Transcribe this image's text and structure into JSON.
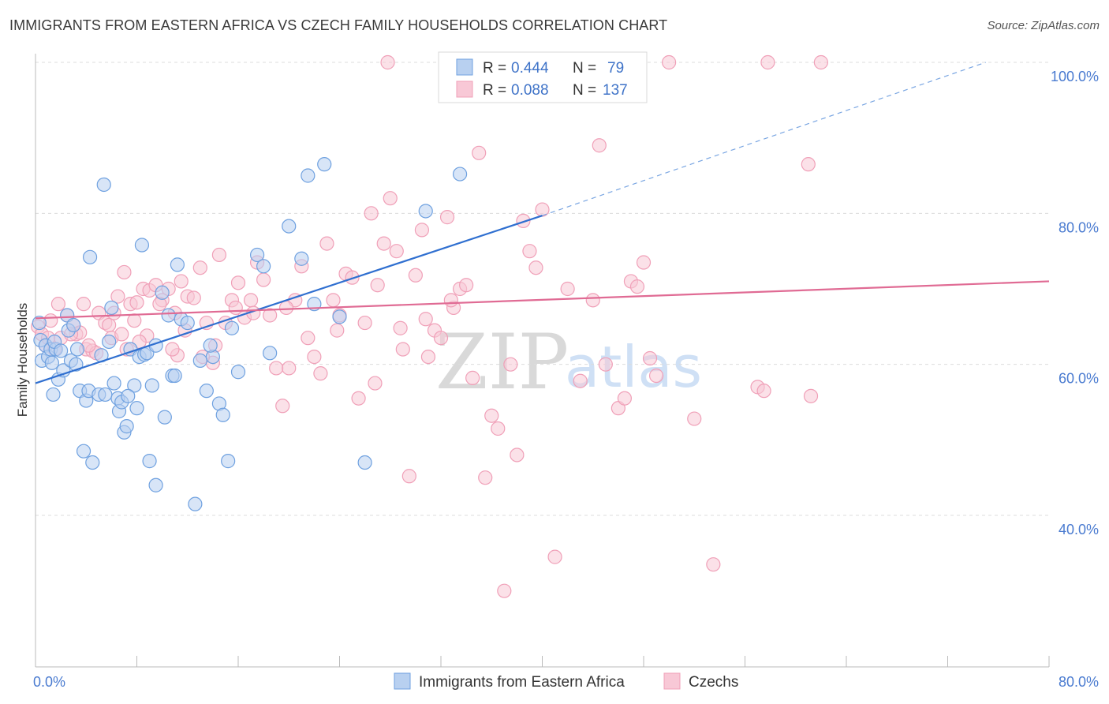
{
  "title": "IMMIGRANTS FROM EASTERN AFRICA VS CZECH FAMILY HOUSEHOLDS CORRELATION CHART",
  "source": "Source: ZipAtlas.com",
  "watermark": {
    "zip": "ZIP",
    "atlas": "atlas"
  },
  "legend_top": {
    "r_label": "R =",
    "n_label": "N =",
    "rows": [
      {
        "r": "0.444",
        "n": "79"
      },
      {
        "r": "0.088",
        "n": "137"
      }
    ]
  },
  "chart_data": {
    "type": "scatter",
    "ylabel": "Family Households",
    "xlabel": "",
    "xlim": [
      0,
      80
    ],
    "ylim": [
      21,
      100
    ],
    "x_tick_labels": [
      "0.0%",
      "80.0%"
    ],
    "y_ticks": [
      40,
      60,
      80,
      100
    ],
    "y_tick_labels": [
      "40.0%",
      "60.0%",
      "80.0%",
      "100.0%"
    ],
    "grid": true,
    "legend_position": "top-center",
    "series": [
      {
        "name": "Immigrants from Eastern Africa",
        "color": "#6fa1e0",
        "fill": "#b8d0f0",
        "trend": {
          "x0": 0,
          "y0": 57.5,
          "x1": 40,
          "y1": 79.7,
          "dash_to_x": 75,
          "dash_to_y": 100
        },
        "points": [
          [
            0.3,
            65.5
          ],
          [
            0.4,
            63.2
          ],
          [
            0.5,
            60.5
          ],
          [
            0.8,
            62.5
          ],
          [
            1.0,
            61.0
          ],
          [
            1.2,
            62.0
          ],
          [
            1.3,
            60.2
          ],
          [
            1.4,
            56.0
          ],
          [
            1.6,
            62.0
          ],
          [
            1.8,
            58.0
          ],
          [
            2.2,
            59.2
          ],
          [
            2.5,
            66.5
          ],
          [
            2.6,
            64.5
          ],
          [
            2.8,
            60.5
          ],
          [
            3.0,
            65.2
          ],
          [
            3.2,
            60.0
          ],
          [
            3.5,
            56.5
          ],
          [
            3.8,
            48.5
          ],
          [
            4.0,
            55.2
          ],
          [
            4.2,
            56.5
          ],
          [
            4.3,
            74.2
          ],
          [
            4.5,
            47.0
          ],
          [
            5.0,
            56.0
          ],
          [
            5.2,
            61.2
          ],
          [
            5.4,
            83.8
          ],
          [
            5.8,
            63.0
          ],
          [
            6.0,
            67.5
          ],
          [
            6.2,
            57.5
          ],
          [
            6.5,
            55.5
          ],
          [
            6.6,
            53.8
          ],
          [
            6.8,
            55.0
          ],
          [
            7.0,
            51.0
          ],
          [
            7.2,
            51.8
          ],
          [
            7.5,
            62.0
          ],
          [
            7.8,
            57.2
          ],
          [
            8.0,
            54.2
          ],
          [
            8.2,
            61.0
          ],
          [
            8.4,
            75.8
          ],
          [
            8.6,
            61.3
          ],
          [
            8.8,
            61.5
          ],
          [
            9.0,
            47.2
          ],
          [
            9.2,
            57.2
          ],
          [
            9.5,
            44.0
          ],
          [
            10.0,
            69.5
          ],
          [
            10.2,
            53.0
          ],
          [
            10.5,
            66.5
          ],
          [
            10.8,
            58.5
          ],
          [
            11.0,
            58.5
          ],
          [
            11.2,
            73.2
          ],
          [
            11.5,
            66.0
          ],
          [
            12.0,
            65.5
          ],
          [
            12.6,
            41.5
          ],
          [
            13.0,
            60.5
          ],
          [
            13.5,
            56.5
          ],
          [
            14.0,
            61.0
          ],
          [
            14.5,
            54.8
          ],
          [
            14.8,
            53.3
          ],
          [
            15.2,
            47.2
          ],
          [
            15.5,
            64.8
          ],
          [
            16.0,
            59.0
          ],
          [
            17.5,
            74.5
          ],
          [
            18.0,
            73.0
          ],
          [
            20.0,
            78.3
          ],
          [
            21.0,
            74.0
          ],
          [
            21.5,
            85.0
          ],
          [
            22.8,
            86.5
          ],
          [
            30.8,
            80.3
          ],
          [
            33.5,
            85.2
          ],
          [
            24.0,
            66.3
          ],
          [
            26.0,
            47.0
          ],
          [
            22.0,
            68.0
          ],
          [
            18.5,
            61.5
          ],
          [
            1.5,
            63.0
          ],
          [
            2.0,
            61.8
          ],
          [
            9.5,
            62.5
          ],
          [
            13.8,
            62.5
          ],
          [
            3.3,
            62.0
          ],
          [
            7.3,
            55.8
          ],
          [
            5.5,
            56.0
          ]
        ]
      },
      {
        "name": "Czechs",
        "color": "#f0a0b8",
        "fill": "#f8c8d6",
        "trend": {
          "x0": 0,
          "y0": 66.1,
          "x1": 80,
          "y1": 71.0
        },
        "points": [
          [
            0.2,
            65.0
          ],
          [
            0.5,
            64.0
          ],
          [
            0.8,
            62.5
          ],
          [
            1.0,
            63.5
          ],
          [
            1.2,
            65.8
          ],
          [
            1.5,
            62.0
          ],
          [
            2.0,
            63.5
          ],
          [
            2.5,
            66.5
          ],
          [
            3.0,
            65.2
          ],
          [
            3.2,
            64.0
          ],
          [
            3.5,
            64.2
          ],
          [
            4.0,
            62.0
          ],
          [
            4.5,
            61.8
          ],
          [
            5.0,
            66.8
          ],
          [
            5.5,
            65.5
          ],
          [
            5.8,
            65.2
          ],
          [
            6.0,
            63.5
          ],
          [
            6.2,
            66.8
          ],
          [
            6.5,
            69.0
          ],
          [
            7.0,
            72.2
          ],
          [
            7.2,
            62.0
          ],
          [
            7.5,
            68.0
          ],
          [
            7.8,
            65.8
          ],
          [
            8.0,
            68.2
          ],
          [
            8.5,
            70.0
          ],
          [
            8.8,
            63.8
          ],
          [
            9.0,
            69.8
          ],
          [
            9.5,
            70.5
          ],
          [
            10.0,
            68.5
          ],
          [
            10.5,
            70.0
          ],
          [
            11.0,
            66.8
          ],
          [
            11.2,
            61.2
          ],
          [
            11.5,
            71.0
          ],
          [
            12.0,
            69.0
          ],
          [
            12.5,
            68.8
          ],
          [
            13.0,
            72.8
          ],
          [
            13.5,
            65.5
          ],
          [
            14.0,
            60.2
          ],
          [
            14.5,
            74.5
          ],
          [
            15.0,
            65.5
          ],
          [
            15.5,
            68.5
          ],
          [
            16.0,
            70.8
          ],
          [
            16.5,
            66.2
          ],
          [
            17.0,
            68.5
          ],
          [
            17.5,
            73.5
          ],
          [
            18.0,
            71.2
          ],
          [
            18.5,
            66.5
          ],
          [
            19.0,
            59.5
          ],
          [
            19.5,
            54.5
          ],
          [
            20.0,
            59.5
          ],
          [
            20.5,
            68.5
          ],
          [
            21.0,
            73.0
          ],
          [
            21.5,
            63.5
          ],
          [
            22.0,
            61.0
          ],
          [
            22.5,
            58.8
          ],
          [
            23.0,
            76.0
          ],
          [
            23.5,
            68.5
          ],
          [
            24.0,
            66.5
          ],
          [
            24.5,
            72.0
          ],
          [
            25.0,
            71.5
          ],
          [
            25.5,
            55.5
          ],
          [
            26.0,
            65.5
          ],
          [
            26.5,
            80.0
          ],
          [
            27.0,
            70.5
          ],
          [
            27.5,
            76.0
          ],
          [
            28.0,
            82.0
          ],
          [
            28.5,
            75.0
          ],
          [
            29.0,
            62.0
          ],
          [
            29.5,
            45.2
          ],
          [
            30.0,
            71.8
          ],
          [
            30.5,
            77.8
          ],
          [
            31.0,
            61.0
          ],
          [
            31.5,
            64.5
          ],
          [
            32.0,
            63.5
          ],
          [
            32.5,
            79.5
          ],
          [
            33.0,
            67.5
          ],
          [
            33.5,
            70.0
          ],
          [
            34.0,
            70.5
          ],
          [
            34.5,
            58.2
          ],
          [
            35.0,
            88.0
          ],
          [
            35.5,
            45.0
          ],
          [
            36.0,
            53.2
          ],
          [
            36.5,
            51.5
          ],
          [
            37.0,
            30.0
          ],
          [
            37.5,
            60.0
          ],
          [
            38.0,
            48.0
          ],
          [
            38.5,
            79.0
          ],
          [
            39.0,
            75.0
          ],
          [
            39.5,
            72.8
          ],
          [
            40.0,
            80.5
          ],
          [
            41.0,
            34.5
          ],
          [
            42.0,
            70.0
          ],
          [
            43.0,
            57.8
          ],
          [
            44.0,
            68.5
          ],
          [
            44.5,
            89.0
          ],
          [
            45.0,
            60.0
          ],
          [
            46.0,
            54.2
          ],
          [
            46.5,
            55.5
          ],
          [
            47.0,
            71.0
          ],
          [
            47.5,
            70.3
          ],
          [
            48.0,
            73.5
          ],
          [
            48.5,
            60.8
          ],
          [
            49.0,
            58.5
          ],
          [
            52.0,
            52.8
          ],
          [
            53.5,
            33.5
          ],
          [
            57.0,
            57.0
          ],
          [
            57.5,
            56.5
          ],
          [
            61.0,
            86.5
          ],
          [
            61.2,
            55.8
          ],
          [
            6.8,
            64.0
          ],
          [
            2.8,
            64.0
          ],
          [
            11.8,
            64.5
          ],
          [
            14.2,
            62.5
          ],
          [
            17.2,
            66.8
          ],
          [
            19.8,
            67.5
          ],
          [
            23.8,
            64.5
          ],
          [
            26.8,
            57.5
          ],
          [
            28.8,
            64.8
          ],
          [
            30.8,
            66.0
          ],
          [
            32.8,
            68.5
          ],
          [
            4.8,
            61.5
          ],
          [
            8.2,
            63.0
          ],
          [
            13.2,
            61.0
          ],
          [
            3.8,
            68.0
          ],
          [
            1.8,
            68.0
          ],
          [
            9.8,
            68.0
          ],
          [
            15.8,
            67.5
          ],
          [
            4.2,
            62.5
          ],
          [
            27.8,
            100.0
          ],
          [
            41.8,
            100.0
          ],
          [
            50.0,
            100.0
          ],
          [
            57.8,
            100.0
          ],
          [
            62.0,
            100.0
          ],
          [
            10.8,
            62.0
          ]
        ]
      }
    ]
  }
}
